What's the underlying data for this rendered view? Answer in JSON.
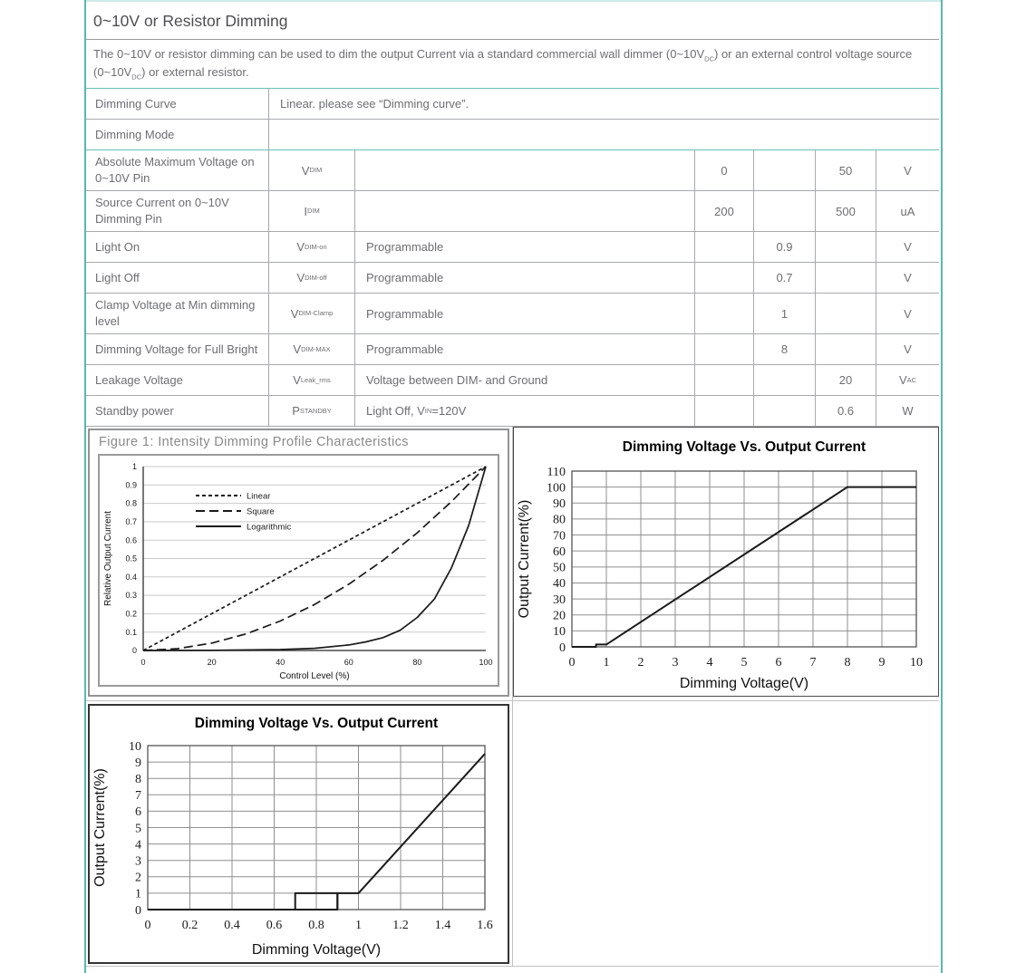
{
  "page": {
    "title": "0~10V or Resistor Dimming",
    "accent_color": "#58b7b0",
    "table_border_color": "#a7a9ac",
    "intro": [
      {
        "t": "The 0~10V or resistor dimming can be used to dim the output Current via a standard commercial wall dimmer (0~10V"
      },
      {
        "sub": "DC"
      },
      {
        "t": ") or an external control voltage source (0~10V"
      },
      {
        "sub": "DC"
      },
      {
        "t": ") or external resistor."
      }
    ]
  },
  "table": {
    "rows": [
      {
        "type": "merged",
        "label": "Dimming Curve",
        "value": "Linear. please see “Dimming curve”.",
        "teal_top": true
      },
      {
        "type": "merged",
        "label": "Dimming Mode",
        "value": "",
        "teal_bottom": true
      },
      {
        "type": "spec",
        "label": "Absolute Maximum Voltage on 0~10V Pin",
        "symbol": [
          {
            "t": "V"
          },
          {
            "sub": "DIM"
          }
        ],
        "conditions": [],
        "min": "0",
        "typ": "",
        "max": "50",
        "unit": [
          {
            "t": "V"
          }
        ]
      },
      {
        "type": "spec",
        "label": "Source Current on 0~10V Dimming Pin",
        "symbol": [
          {
            "t": "I"
          },
          {
            "sub": "DIM"
          }
        ],
        "conditions": [],
        "min": "200",
        "typ": "",
        "max": "500",
        "unit": [
          {
            "t": "uA"
          }
        ]
      },
      {
        "type": "spec",
        "label": "Light On",
        "symbol": [
          {
            "t": "V"
          },
          {
            "sub": "DIM-on"
          }
        ],
        "conditions": [
          {
            "t": "Programmable"
          }
        ],
        "min": "",
        "typ": "0.9",
        "max": "",
        "unit": [
          {
            "t": "V"
          }
        ]
      },
      {
        "type": "spec",
        "label": "Light Off",
        "symbol": [
          {
            "t": "V"
          },
          {
            "sub": "DIM-off"
          }
        ],
        "conditions": [
          {
            "t": "Programmable"
          }
        ],
        "min": "",
        "typ": "0.7",
        "max": "",
        "unit": [
          {
            "t": "V"
          }
        ]
      },
      {
        "type": "spec",
        "label": "Clamp Voltage at Min dimming level",
        "symbol": [
          {
            "t": "V"
          },
          {
            "sub": "DIM-Clamp"
          }
        ],
        "conditions": [
          {
            "t": "Programmable"
          }
        ],
        "min": "",
        "typ": "1",
        "max": "",
        "unit": [
          {
            "t": "V"
          }
        ]
      },
      {
        "type": "spec",
        "label": "Dimming Voltage for Full Bright",
        "symbol": [
          {
            "t": "V"
          },
          {
            "sub": "DIM-MAX"
          }
        ],
        "conditions": [
          {
            "t": "Programmable"
          }
        ],
        "min": "",
        "typ": "8",
        "max": "",
        "unit": [
          {
            "t": "V"
          }
        ]
      },
      {
        "type": "spec",
        "label": "Leakage Voltage",
        "symbol": [
          {
            "t": "V"
          },
          {
            "sub": "Leak_rms"
          }
        ],
        "conditions": [
          {
            "t": "Voltage between DIM- and Ground"
          }
        ],
        "min": "",
        "typ": "",
        "max": "20",
        "unit": [
          {
            "t": "V"
          },
          {
            "sub": "AC"
          }
        ]
      },
      {
        "type": "spec",
        "label": "Standby power",
        "symbol": [
          {
            "t": "P"
          },
          {
            "sub": "STANDBY"
          }
        ],
        "conditions": [
          {
            "t": "Light Off, V"
          },
          {
            "sub": "IN"
          },
          {
            "t": "=120V"
          }
        ],
        "min": "",
        "typ": "",
        "max": "0.6",
        "unit": [
          {
            "t": "W"
          }
        ]
      }
    ]
  },
  "chart_data": [
    {
      "id": "figure1",
      "type": "line",
      "figure_label": "Figure 1: Intensity Dimming Profile Characteristics",
      "title": "",
      "xlabel": "Control Level (%)",
      "ylabel": "Relative Output Current",
      "xlim": [
        0,
        100
      ],
      "ylim": [
        0,
        1
      ],
      "xticks": [
        0,
        20,
        40,
        60,
        80,
        100
      ],
      "yticks": [
        0,
        0.1,
        0.2,
        0.3,
        0.4,
        0.5,
        0.6,
        0.7,
        0.8,
        0.9,
        1
      ],
      "ytick_labels": [
        "0",
        "0.1",
        "0.2",
        "0.3",
        "0.4",
        "0.5",
        "0.6",
        "0.7",
        "0.8",
        "0.9",
        "1"
      ],
      "grid": "horizontal",
      "legend_position": "upper-left",
      "legend": [
        {
          "label": "Linear",
          "dash": "4,3"
        },
        {
          "label": "Square",
          "dash": "10,5"
        },
        {
          "label": "Logarithmic",
          "dash": ""
        }
      ],
      "series": [
        {
          "name": "Linear",
          "dash": "4,3",
          "points": [
            [
              0,
              0
            ],
            [
              100,
              1
            ]
          ]
        },
        {
          "name": "Square",
          "dash": "10,5",
          "points": [
            [
              0,
              0
            ],
            [
              10,
              0.01
            ],
            [
              20,
              0.04
            ],
            [
              30,
              0.09
            ],
            [
              40,
              0.16
            ],
            [
              50,
              0.25
            ],
            [
              60,
              0.36
            ],
            [
              70,
              0.49
            ],
            [
              80,
              0.64
            ],
            [
              90,
              0.81
            ],
            [
              100,
              1
            ]
          ]
        },
        {
          "name": "Logarithmic",
          "dash": "",
          "points": [
            [
              0,
              0
            ],
            [
              20,
              0.001
            ],
            [
              40,
              0.005
            ],
            [
              50,
              0.012
            ],
            [
              60,
              0.03
            ],
            [
              65,
              0.047
            ],
            [
              70,
              0.07
            ],
            [
              75,
              0.11
            ],
            [
              80,
              0.18
            ],
            [
              85,
              0.28
            ],
            [
              90,
              0.45
            ],
            [
              95,
              0.68
            ],
            [
              100,
              1
            ]
          ]
        }
      ]
    },
    {
      "id": "dimming-top",
      "type": "line",
      "title": "Dimming Voltage Vs. Output Current",
      "xlabel": "Dimming Voltage(V)",
      "ylabel": "Output Current(%)",
      "xlim": [
        0,
        10
      ],
      "ylim": [
        0,
        110
      ],
      "xticks": [
        0,
        1,
        2,
        3,
        4,
        5,
        6,
        7,
        8,
        9,
        10
      ],
      "yticks": [
        0,
        10,
        20,
        30,
        40,
        50,
        60,
        70,
        80,
        90,
        100,
        110
      ],
      "grid": "both",
      "series": [
        {
          "name": "output-current",
          "dash": "",
          "width": 2,
          "points": [
            [
              0,
              0
            ],
            [
              0.7,
              0
            ],
            [
              0.7,
              1.5
            ],
            [
              1,
              1.5
            ],
            [
              8,
              100
            ],
            [
              10,
              100
            ]
          ]
        }
      ]
    },
    {
      "id": "dimming-bottom",
      "type": "line",
      "title": "Dimming Voltage Vs. Output Current",
      "xlabel": "Dimming Voltage(V)",
      "ylabel": "Output Current(%)",
      "xlim": [
        0,
        1.6
      ],
      "ylim": [
        0,
        10
      ],
      "xticks": [
        0,
        0.2,
        0.4,
        0.6,
        0.8,
        1,
        1.2,
        1.4,
        1.6
      ],
      "xtick_labels": [
        "0",
        "0.2",
        "0.4",
        "0.6",
        "0.8",
        "1",
        "1.2",
        "1.4",
        "1.6"
      ],
      "yticks": [
        0,
        1,
        2,
        3,
        4,
        5,
        6,
        7,
        8,
        9,
        10
      ],
      "grid": "both",
      "series": [
        {
          "name": "output-current",
          "dash": "",
          "width": 2,
          "points": [
            [
              0,
              0
            ],
            [
              0.9,
              0
            ],
            [
              0.9,
              1
            ],
            [
              1,
              1
            ],
            [
              1.6,
              9.5
            ]
          ]
        },
        {
          "name": "hysteresis-box",
          "dash": "",
          "width": 2,
          "points": [
            [
              0.7,
              0
            ],
            [
              0.7,
              1
            ],
            [
              0.9,
              1
            ],
            [
              0.9,
              0
            ]
          ]
        }
      ]
    }
  ]
}
